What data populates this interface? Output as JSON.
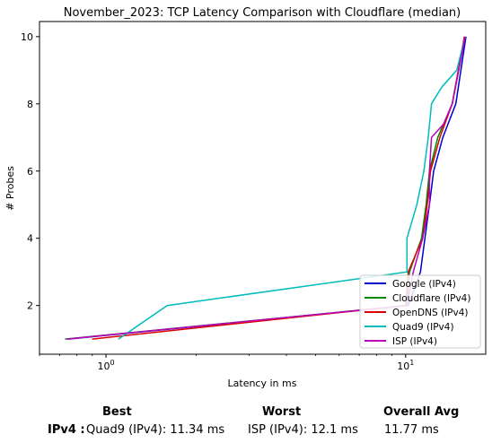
{
  "chart_data": {
    "type": "line",
    "title": "November_2023: TCP Latency Comparison with Cloudflare (median)",
    "xlabel": "Latency in ms",
    "ylabel": "# Probes",
    "xscale": "log",
    "xlim": [
      0.6,
      18.5
    ],
    "ylim": [
      0.55,
      10.45
    ],
    "xticks": [
      {
        "value": 1,
        "label": "10^0"
      },
      {
        "value": 10,
        "label": "10^1"
      }
    ],
    "yticks": [
      2,
      4,
      6,
      8,
      10
    ],
    "grid": false,
    "legend_position": "bottom-right",
    "series": [
      {
        "name": "Google (IPv4)",
        "color": "#0000cc",
        "x": [
          0.75,
          10.2,
          11.2,
          11.6,
          12.0,
          12.4,
          13.3,
          14.7,
          15.9
        ],
        "y": [
          1,
          2,
          3,
          4,
          5,
          6,
          7,
          8,
          10
        ]
      },
      {
        "name": "Cloudflare (IPv4)",
        "color": "#008800",
        "x": [
          0.73,
          10.1,
          10.3,
          11.3,
          11.7,
          12.0,
          12.8,
          14.3,
          15.8
        ],
        "y": [
          1,
          2,
          3,
          4,
          5,
          6,
          7,
          8,
          10
        ]
      },
      {
        "name": "OpenDNS (IPv4)",
        "color": "#dd0000",
        "x": [
          0.9,
          10.0,
          10.2,
          11.4,
          11.8,
          12.1,
          13.0,
          14.3,
          15.7
        ],
        "y": [
          1,
          2,
          3,
          4,
          5,
          6,
          7,
          8,
          10
        ]
      },
      {
        "name": "Quad9 (IPv4)",
        "color": "#00bbbb",
        "x": [
          1.1,
          1.6,
          10.1,
          10.1,
          10.9,
          11.5,
          11.9,
          12.2,
          13.2,
          14.8,
          15.8
        ],
        "y": [
          1,
          2,
          3,
          4,
          5,
          6,
          7,
          8,
          8.5,
          9,
          10
        ]
      },
      {
        "name": "ISP (IPv4)",
        "color": "#bb00bb",
        "x": [
          0.74,
          10.1,
          10.6,
          11.4,
          12.0,
          12.0,
          12.2,
          13.4,
          14.3,
          15.8
        ],
        "y": [
          1,
          2,
          3,
          4,
          5,
          6,
          7,
          7.4,
          8,
          10
        ]
      }
    ]
  },
  "summary": {
    "best_header": "Best",
    "worst_header": "Worst",
    "avg_header": "Overall Avg",
    "row_label": "IPv4 :",
    "best_value": "Quad9 (IPv4): 11.34 ms",
    "worst_value": "ISP (IPv4): 12.1 ms",
    "avg_value": "11.77 ms"
  }
}
